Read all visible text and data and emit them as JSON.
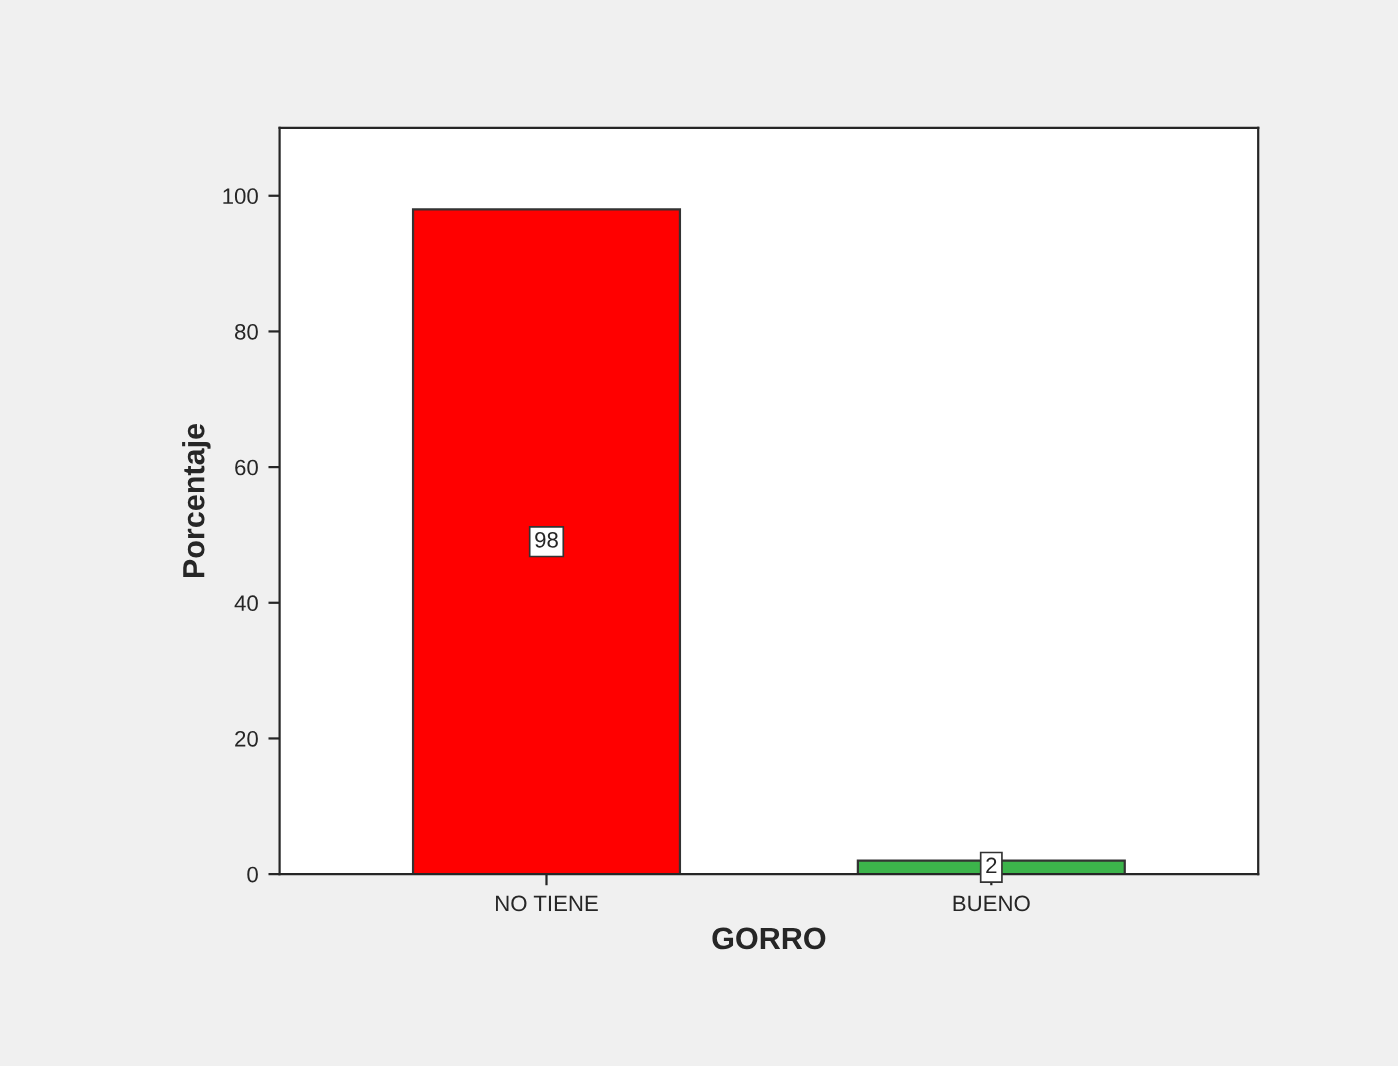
{
  "chart_data": {
    "type": "bar",
    "xlabel": "GORRO",
    "ylabel": "Porcentaje",
    "categories": [
      "NO TIENE",
      "BUENO"
    ],
    "values": [
      98,
      2
    ],
    "colors": [
      "#ff0000",
      "#3cb44b"
    ],
    "ylim": [
      0,
      110
    ],
    "yticks": [
      0,
      20,
      40,
      60,
      80,
      100
    ],
    "grid": false,
    "data_labels": true
  }
}
